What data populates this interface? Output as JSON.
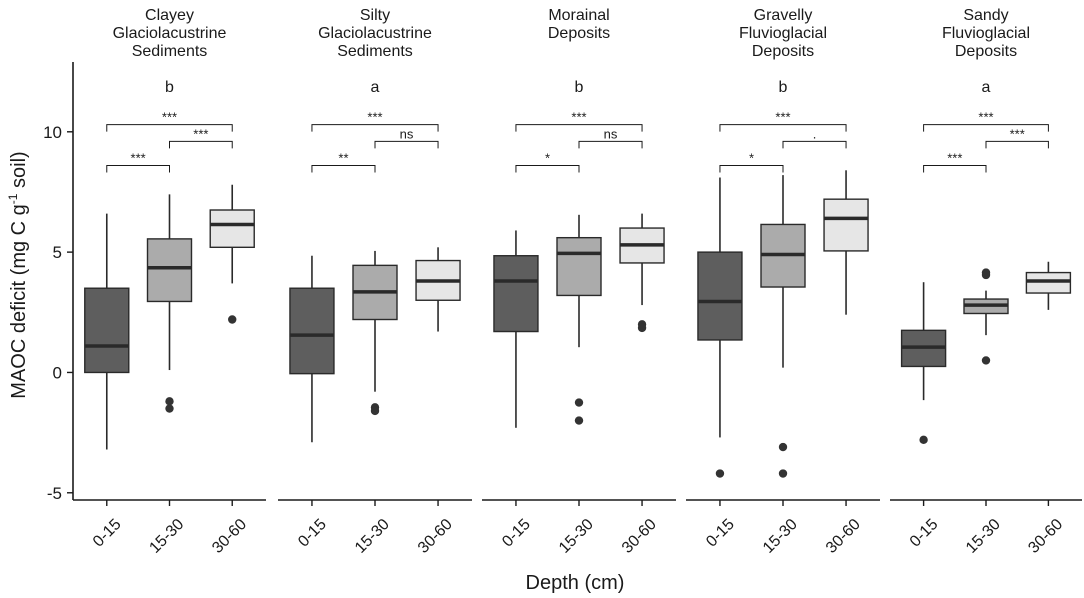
{
  "chart_data": {
    "type": "boxplot",
    "ylabel_main": "MAOC deficit (mg C g",
    "ylabel_sup": "-1",
    "ylabel_end": " soil)",
    "xlabel": "Depth (cm)",
    "ylim": [
      -5.3,
      12.9
    ],
    "yticks": [
      -5,
      0,
      5,
      10
    ],
    "categories": [
      "0-15",
      "15-30",
      "30-60"
    ],
    "colors": {
      "0-15": "#5e5e5e",
      "15-30": "#ababab",
      "30-60": "#e6e6e6"
    },
    "panels": [
      {
        "title": [
          "Clayey",
          "Glaciolacustrine",
          "Sediments"
        ],
        "group_letter": "b",
        "brackets": [
          {
            "from": 0,
            "to": 2,
            "label": "***",
            "y": 10.3
          },
          {
            "from": 1,
            "to": 2,
            "label": "***",
            "y": 9.6
          },
          {
            "from": 0,
            "to": 1,
            "label": "***",
            "y": 8.6
          }
        ],
        "boxes": [
          {
            "depth": "0-15",
            "min": -3.2,
            "q1": 0.0,
            "median": 1.1,
            "q3": 3.5,
            "max": 6.6,
            "outliers": []
          },
          {
            "depth": "15-30",
            "min": 0.1,
            "q1": 2.95,
            "median": 4.35,
            "q3": 5.55,
            "max": 7.4,
            "outliers": [
              -1.2,
              -1.5
            ]
          },
          {
            "depth": "30-60",
            "min": 3.7,
            "q1": 5.2,
            "median": 6.15,
            "q3": 6.75,
            "max": 7.8,
            "outliers": [
              2.2
            ]
          }
        ]
      },
      {
        "title": [
          "Silty",
          "Glaciolacustrine",
          "Sediments"
        ],
        "group_letter": "a",
        "brackets": [
          {
            "from": 0,
            "to": 2,
            "label": "***",
            "y": 10.3
          },
          {
            "from": 1,
            "to": 2,
            "label": "ns",
            "y": 9.6
          },
          {
            "from": 0,
            "to": 1,
            "label": "**",
            "y": 8.6
          }
        ],
        "boxes": [
          {
            "depth": "0-15",
            "min": -2.9,
            "q1": -0.05,
            "median": 1.55,
            "q3": 3.5,
            "max": 4.85,
            "outliers": []
          },
          {
            "depth": "15-30",
            "min": -0.8,
            "q1": 2.2,
            "median": 3.35,
            "q3": 4.45,
            "max": 5.05,
            "outliers": [
              -1.45,
              -1.6
            ]
          },
          {
            "depth": "30-60",
            "min": 1.7,
            "q1": 3.0,
            "median": 3.8,
            "q3": 4.65,
            "max": 5.2,
            "outliers": []
          }
        ]
      },
      {
        "title": [
          "Morainal",
          "Deposits"
        ],
        "group_letter": "b",
        "brackets": [
          {
            "from": 0,
            "to": 2,
            "label": "***",
            "y": 10.3
          },
          {
            "from": 1,
            "to": 2,
            "label": "ns",
            "y": 9.6
          },
          {
            "from": 0,
            "to": 1,
            "label": "*",
            "y": 8.6
          }
        ],
        "boxes": [
          {
            "depth": "0-15",
            "min": -2.3,
            "q1": 1.7,
            "median": 3.8,
            "q3": 4.85,
            "max": 5.9,
            "outliers": []
          },
          {
            "depth": "15-30",
            "min": 1.05,
            "q1": 3.2,
            "median": 4.95,
            "q3": 5.6,
            "max": 6.55,
            "outliers": [
              -1.25,
              -2.0
            ]
          },
          {
            "depth": "30-60",
            "min": 2.8,
            "q1": 4.55,
            "median": 5.3,
            "q3": 6.0,
            "max": 6.6,
            "outliers": [
              2.0,
              1.85
            ]
          }
        ]
      },
      {
        "title": [
          "Gravelly",
          "Fluvioglacial",
          "Deposits"
        ],
        "group_letter": "b",
        "brackets": [
          {
            "from": 0,
            "to": 2,
            "label": "***",
            "y": 10.3
          },
          {
            "from": 1,
            "to": 2,
            "label": ".",
            "y": 9.6
          },
          {
            "from": 0,
            "to": 1,
            "label": "*",
            "y": 8.6
          }
        ],
        "boxes": [
          {
            "depth": "0-15",
            "min": -2.7,
            "q1": 1.35,
            "median": 2.95,
            "q3": 5.0,
            "max": 8.1,
            "outliers": [
              -4.2
            ]
          },
          {
            "depth": "15-30",
            "min": 0.2,
            "q1": 3.55,
            "median": 4.9,
            "q3": 6.15,
            "max": 8.2,
            "outliers": [
              -3.1,
              -4.2
            ]
          },
          {
            "depth": "30-60",
            "min": 2.4,
            "q1": 5.05,
            "median": 6.4,
            "q3": 7.2,
            "max": 8.4,
            "outliers": []
          }
        ]
      },
      {
        "title": [
          "Sandy",
          "Fluvioglacial",
          "Deposits"
        ],
        "group_letter": "a",
        "brackets": [
          {
            "from": 0,
            "to": 2,
            "label": "***",
            "y": 10.3
          },
          {
            "from": 1,
            "to": 2,
            "label": "***",
            "y": 9.6
          },
          {
            "from": 0,
            "to": 1,
            "label": "***",
            "y": 8.6
          }
        ],
        "boxes": [
          {
            "depth": "0-15",
            "min": -1.15,
            "q1": 0.25,
            "median": 1.05,
            "q3": 1.75,
            "max": 3.75,
            "outliers": [
              -2.8
            ]
          },
          {
            "depth": "15-30",
            "min": 1.55,
            "q1": 2.45,
            "median": 2.8,
            "q3": 3.05,
            "max": 3.4,
            "outliers": [
              0.5,
              4.05,
              4.15
            ]
          },
          {
            "depth": "30-60",
            "min": 2.6,
            "q1": 3.3,
            "median": 3.8,
            "q3": 4.15,
            "max": 4.6,
            "outliers": []
          }
        ]
      }
    ]
  }
}
